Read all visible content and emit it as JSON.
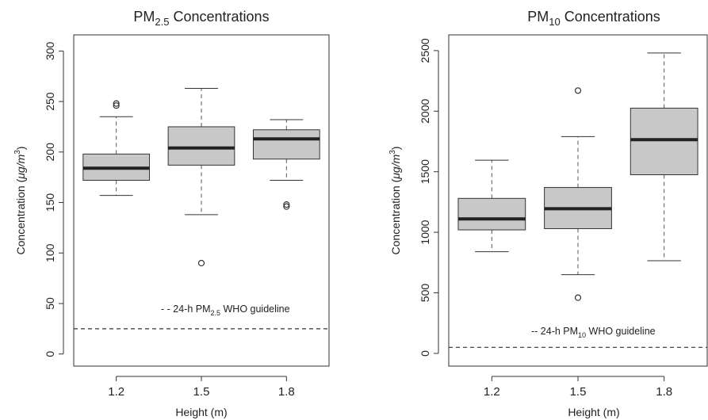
{
  "chart_data": [
    {
      "type": "boxplot",
      "title": {
        "main": "PM",
        "sub": "2.5",
        "rest": " Concentrations"
      },
      "ylabel": {
        "start": "Concentration (",
        "unit": "μg/m",
        "sup": "3",
        "end": ")"
      },
      "xlabel": "Height (m)",
      "categories": [
        "1.2",
        "1.5",
        "1.8"
      ],
      "boxes": [
        {
          "min": 157,
          "q1": 172,
          "median": 184,
          "q3": 198,
          "max": 235,
          "outliers": [
            246,
            248
          ]
        },
        {
          "min": 138,
          "q1": 187,
          "median": 204,
          "q3": 225,
          "max": 263,
          "outliers": [
            90
          ]
        },
        {
          "min": 172,
          "q1": 193,
          "median": 213,
          "q3": 222,
          "max": 232,
          "outliers": [
            146,
            148
          ]
        }
      ],
      "box_color": "#c8c8c8",
      "guideline": {
        "value": 25,
        "label_start": "- - 24-h PM",
        "label_sub": "2.5",
        "label_end": " WHO guideline"
      },
      "ylim": [
        -12,
        316
      ],
      "yticks": [
        0,
        50,
        100,
        150,
        200,
        250,
        300
      ]
    },
    {
      "type": "boxplot",
      "title": {
        "main": "PM",
        "sub": "10",
        "rest": " Concentrations"
      },
      "ylabel": {
        "start": "Concentration (",
        "unit": "μg/m",
        "sup": "3",
        "end": ")"
      },
      "xlabel": "Height (m)",
      "categories": [
        "1.2",
        "1.5",
        "1.8"
      ],
      "boxes": [
        {
          "min": 840,
          "q1": 1020,
          "median": 1110,
          "q3": 1280,
          "max": 1595,
          "outliers": []
        },
        {
          "min": 650,
          "q1": 1030,
          "median": 1195,
          "q3": 1370,
          "max": 1790,
          "outliers": [
            460,
            2170
          ]
        },
        {
          "min": 765,
          "q1": 1475,
          "median": 1765,
          "q3": 2025,
          "max": 2480,
          "outliers": []
        }
      ],
      "box_color": "#c8c8c8",
      "guideline": {
        "value": 50,
        "label_start": "-- 24-h PM",
        "label_sub": "10",
        "label_end": " WHO guideline"
      },
      "ylim": [
        -105,
        2630
      ],
      "yticks": [
        0,
        500,
        1000,
        1500,
        2000,
        2500
      ]
    }
  ]
}
